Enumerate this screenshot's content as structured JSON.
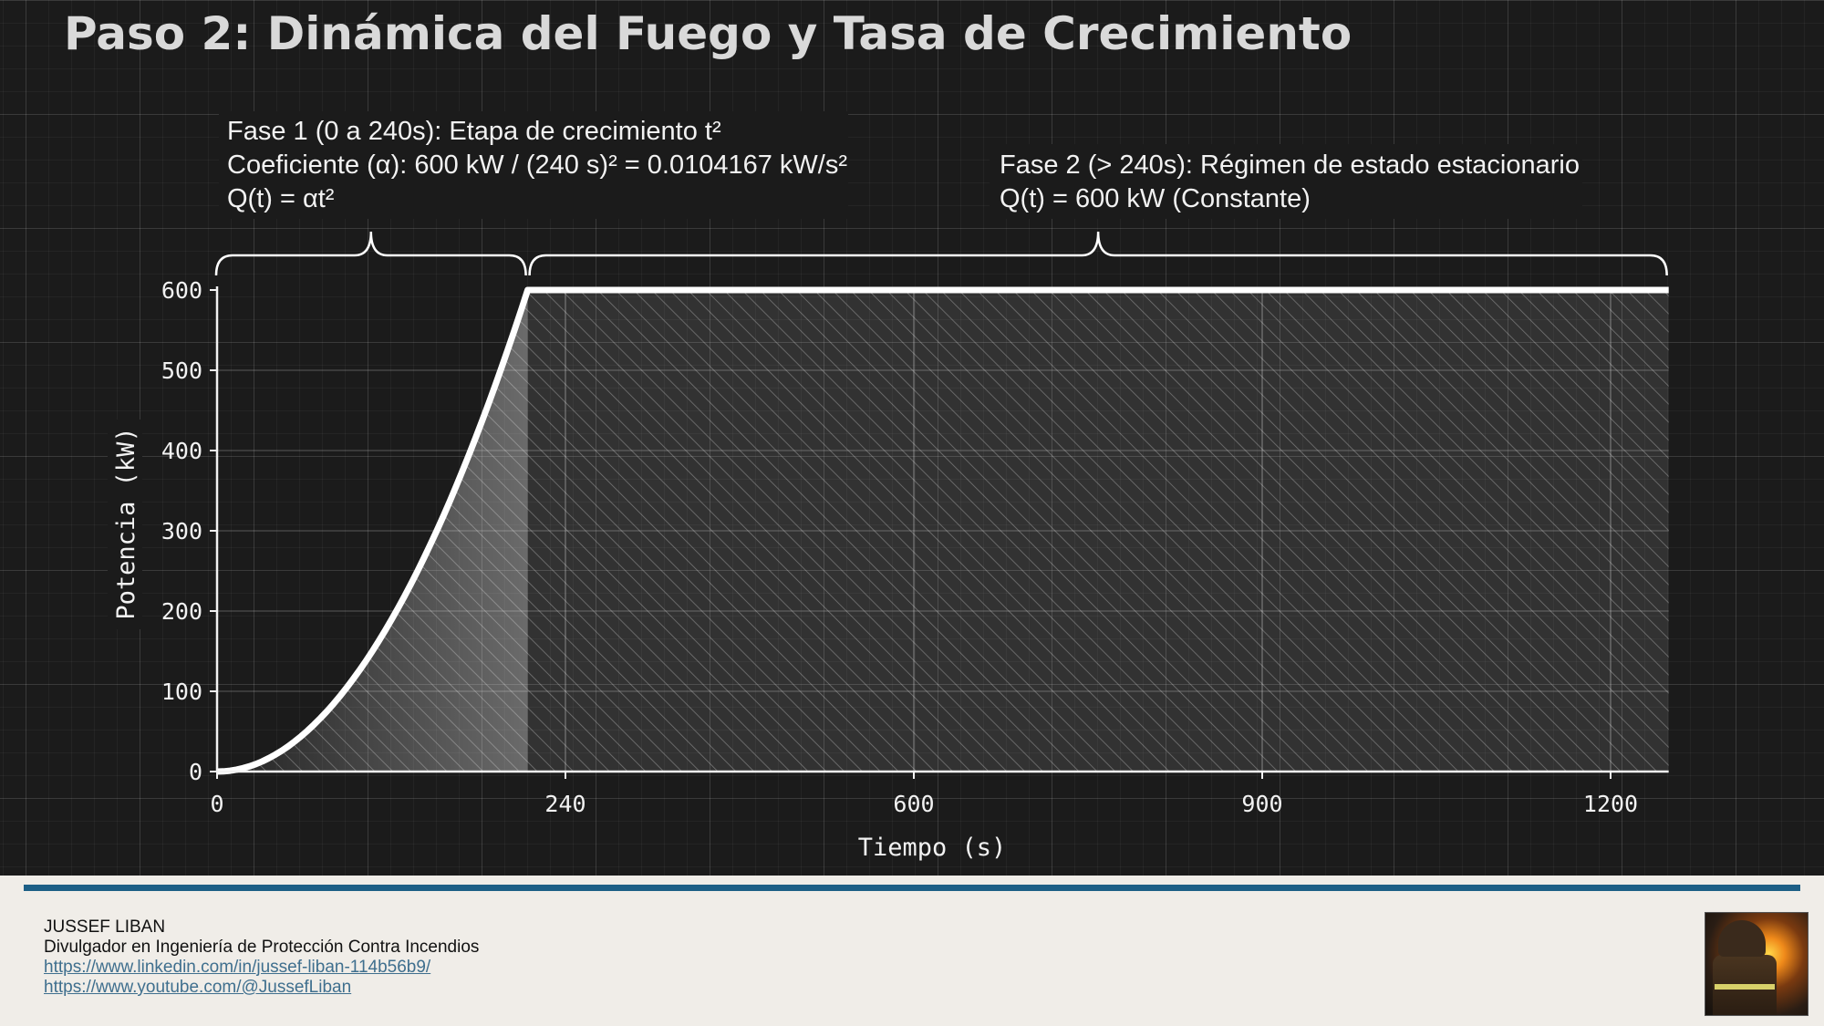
{
  "slide": {
    "title": "Paso 2: Dinámica del Fuego y Tasa de Crecimiento"
  },
  "annotations": {
    "phase1": {
      "line1": "Fase 1 (0 a 240s): Etapa de crecimiento t²",
      "line2": "Coeficiente (α): 600 kW / (240 s)² = 0.0104167 kW/s²",
      "line3": "Q(t) = αt²"
    },
    "phase2": {
      "line1": "Fase 2 (> 240s): Régimen de estado estacionario",
      "line2": "Q(t) = 600 kW (Constante)"
    }
  },
  "chart_data": {
    "type": "line",
    "xlabel": "Tiempo (s)",
    "ylabel": "Potencia (kW)",
    "xlim": [
      0,
      1250
    ],
    "ylim": [
      0,
      600
    ],
    "x_ticks": [
      0,
      240,
      600,
      900,
      1200
    ],
    "y_ticks": [
      0,
      100,
      200,
      300,
      400,
      500,
      600
    ],
    "growth_coefficient": 0.0104167,
    "plateau_start_x": 240,
    "plateau_value": 600,
    "x_end": 1250,
    "grid": true,
    "series": [
      {
        "points": [
          [
            0,
            0
          ],
          [
            24,
            6
          ],
          [
            48,
            24
          ],
          [
            72,
            54
          ],
          [
            96,
            96
          ],
          [
            120,
            150
          ],
          [
            144,
            216
          ],
          [
            168,
            294
          ],
          [
            192,
            384
          ],
          [
            216,
            486
          ],
          [
            240,
            600
          ],
          [
            1250,
            600
          ]
        ]
      }
    ],
    "shaded_region": "area under curve, 0–1250 s, hatched"
  },
  "footer": {
    "name": "JUSSEF LIBAN",
    "role": "Divulgador en Ingeniería de Protección Contra Incendios",
    "link1": "https://www.linkedin.com/in/jussef-liban-114b56b9/",
    "link2": "https://www.youtube.com/@JussefLiban"
  },
  "colors": {
    "background": "#1b1b1b",
    "curve": "#ffffff",
    "accent_bar": "#1d5f86",
    "footer_bg": "#f0ede8",
    "link": "#3f6f8e"
  },
  "icons": {
    "photo": "firefighter-photo"
  }
}
